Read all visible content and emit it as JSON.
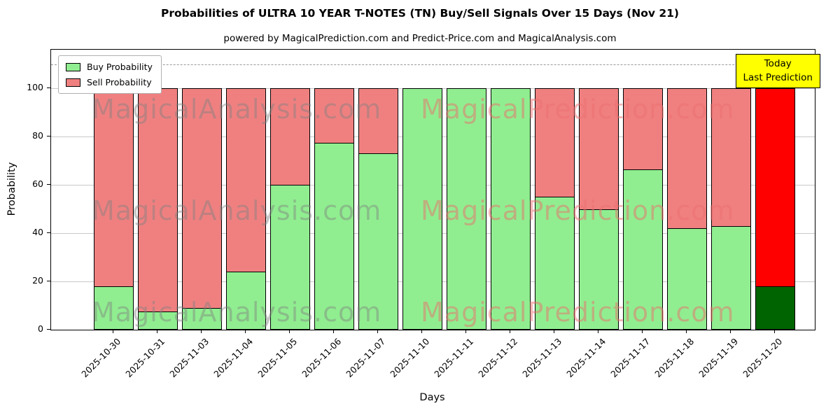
{
  "title": "Probabilities of ULTRA 10 YEAR T-NOTES (TN) Buy/Sell Signals Over 15 Days (Nov 21)",
  "subtitle": "powered by MagicalPrediction.com and Predict-Price.com and MagicalAnalysis.com",
  "annotation": {
    "line1": "Today",
    "line2": "Last Prediction",
    "bg": "#ffff00"
  },
  "legend": [
    {
      "label": "Buy Probability",
      "color": "#90ee90"
    },
    {
      "label": "Sell Probability",
      "color": "#f08080"
    }
  ],
  "axes": {
    "ylabel": "Probability",
    "xlabel": "Days",
    "yticks": [
      0,
      20,
      40,
      60,
      80,
      100
    ],
    "ylim": [
      0,
      116
    ],
    "dashed_line_y": 110
  },
  "watermarks": {
    "left_text": "MagicalAnalysis.com",
    "right_text": "MagicalPrediction.com",
    "left_color": "rgba(128,128,128,0.45)",
    "right_color": "rgba(235,110,110,0.5)"
  },
  "chart_data": {
    "type": "bar",
    "stacked": true,
    "title": "Probabilities of ULTRA 10 YEAR T-NOTES (TN) Buy/Sell Signals Over 15 Days (Nov 21)",
    "xlabel": "Days",
    "ylabel": "Probability",
    "ylim": [
      0,
      116
    ],
    "grid": true,
    "legend_position": "upper left",
    "categories": [
      "2025-10-30",
      "2025-10-31",
      "2025-11-03",
      "2025-11-04",
      "2025-11-05",
      "2025-11-06",
      "2025-11-07",
      "2025-11-10",
      "2025-11-11",
      "2025-11-12",
      "2025-11-13",
      "2025-11-14",
      "2025-11-17",
      "2025-11-18",
      "2025-11-19",
      "2025-11-20"
    ],
    "series": [
      {
        "name": "Buy Probability",
        "values": [
          18,
          7.5,
          9,
          24,
          60,
          77.5,
          73,
          100,
          100,
          100,
          55,
          50,
          66.5,
          42,
          43,
          18
        ]
      },
      {
        "name": "Sell Probability",
        "values": [
          82,
          92.5,
          91,
          76,
          40,
          22.5,
          27,
          0,
          0,
          0,
          45,
          50,
          33.5,
          58,
          57,
          82
        ]
      }
    ],
    "colors": {
      "buy": "#90ee90",
      "sell": "#f08080"
    },
    "last_bar_colors": {
      "buy": "#006400",
      "sell": "#ff0000"
    }
  }
}
